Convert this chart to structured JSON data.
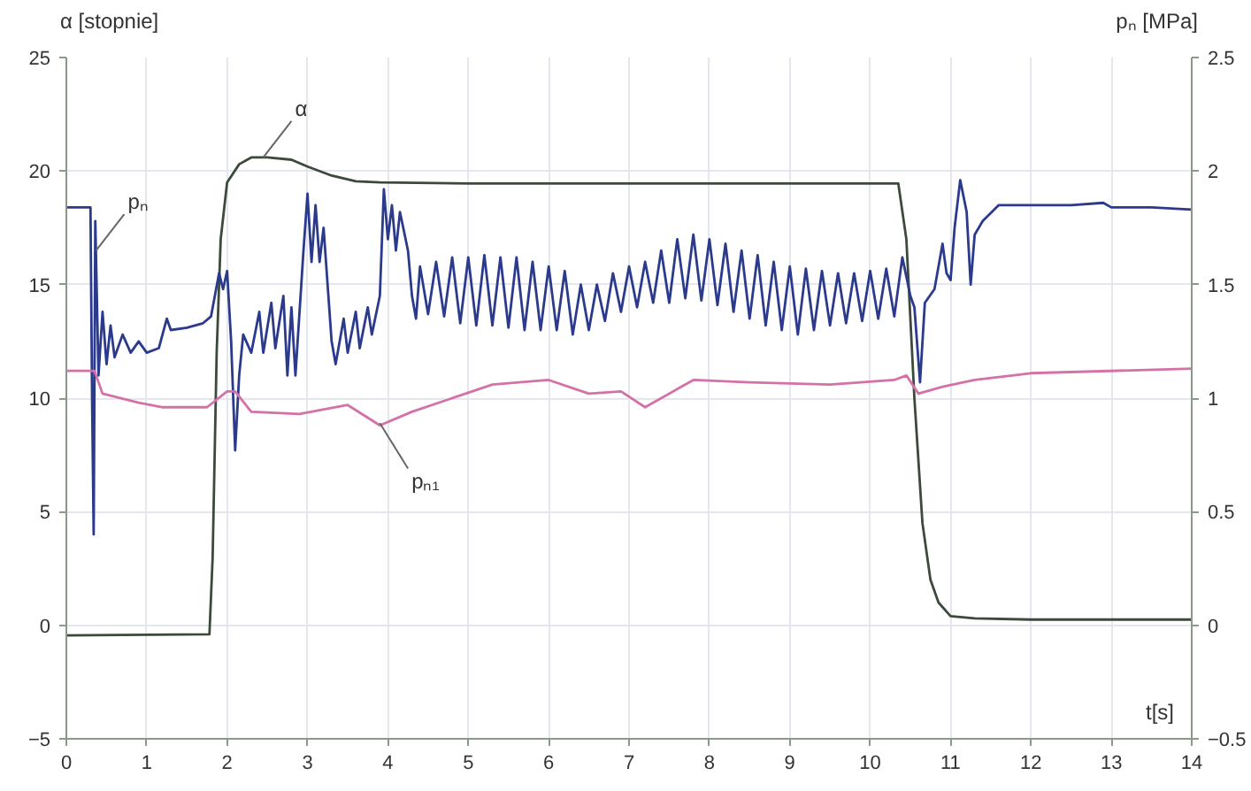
{
  "chart_data": {
    "type": "line",
    "ylabel": "α [stopnie]",
    "y2label": "pₙ [MPa]",
    "xlabel": "t[s]",
    "xlim": [
      0,
      14
    ],
    "xticks": [
      0,
      1,
      2,
      3,
      4,
      5,
      6,
      7,
      8,
      9,
      10,
      11,
      12,
      13,
      14
    ],
    "ylim": [
      -5,
      25
    ],
    "yticks": [
      -5,
      0,
      5,
      10,
      15,
      20,
      25
    ],
    "y2lim": [
      -0.5,
      2.5
    ],
    "y2ticks": [
      -0.5,
      0,
      0.5,
      1,
      1.5,
      2,
      2.5
    ],
    "grid": true,
    "line_style": "solid",
    "marker": "none",
    "annotations": [
      {
        "text": "α",
        "x": 2.45,
        "y": 20.6
      },
      {
        "text": "pₙ",
        "x": 0.37,
        "y": 16.5
      },
      {
        "text": "pₙ₁",
        "x": 3.9,
        "y": 8.9
      }
    ],
    "series": [
      {
        "color": "#3c4a3c",
        "x": [
          0,
          1.78,
          1.82,
          1.87,
          1.92,
          2.0,
          2.15,
          2.3,
          2.5,
          2.8,
          3.0,
          3.3,
          3.6,
          3.9,
          5,
          10.35,
          10.45,
          10.55,
          10.65,
          10.75,
          10.85,
          11.0,
          11.3,
          12,
          14
        ],
        "values": [
          -0.45,
          -0.4,
          3,
          12,
          17,
          19.5,
          20.3,
          20.6,
          20.6,
          20.5,
          20.2,
          19.8,
          19.55,
          19.5,
          19.45,
          19.45,
          17,
          10,
          4.5,
          2,
          1,
          0.4,
          0.3,
          0.25,
          0.25
        ]
      },
      {
        "color": "#2b3a8c",
        "axis": "y2",
        "x": [
          0,
          0.3,
          0.32,
          0.34,
          0.36,
          0.4,
          0.45,
          0.5,
          0.55,
          0.6,
          0.7,
          0.8,
          0.9,
          1.0,
          1.15,
          1.25,
          1.3,
          1.5,
          1.7,
          1.8,
          1.9,
          1.95,
          2.0,
          2.05,
          2.1,
          2.15,
          2.2,
          2.3,
          2.4,
          2.45,
          2.55,
          2.6,
          2.7,
          2.75,
          2.8,
          2.85,
          2.95,
          3.0,
          3.05,
          3.1,
          3.15,
          3.2,
          3.3,
          3.35,
          3.45,
          3.5,
          3.6,
          3.65,
          3.75,
          3.8,
          3.9,
          3.95,
          4.0,
          4.05,
          4.1,
          4.15,
          4.25,
          4.3,
          4.35,
          4.4,
          4.5,
          4.6,
          4.7,
          4.8,
          4.9,
          5.0,
          5.1,
          5.2,
          5.3,
          5.4,
          5.5,
          5.6,
          5.7,
          5.8,
          5.9,
          6.0,
          6.1,
          6.2,
          6.3,
          6.4,
          6.5,
          6.6,
          6.7,
          6.8,
          6.9,
          7.0,
          7.1,
          7.2,
          7.3,
          7.4,
          7.5,
          7.6,
          7.7,
          7.8,
          7.9,
          8.0,
          8.1,
          8.2,
          8.3,
          8.4,
          8.5,
          8.6,
          8.7,
          8.8,
          8.9,
          9.0,
          9.1,
          9.2,
          9.3,
          9.4,
          9.5,
          9.6,
          9.7,
          9.8,
          9.9,
          10.0,
          10.1,
          10.2,
          10.3,
          10.4,
          10.5,
          10.55,
          10.62,
          10.68,
          10.8,
          10.9,
          10.95,
          11.0,
          11.05,
          11.12,
          11.2,
          11.25,
          11.3,
          11.4,
          11.6,
          12.0,
          12.5,
          12.9,
          13.0,
          13.5,
          14.0
        ],
        "values": [
          1.84,
          1.84,
          1.0,
          0.4,
          1.78,
          1.1,
          1.38,
          1.15,
          1.32,
          1.18,
          1.28,
          1.2,
          1.25,
          1.2,
          1.22,
          1.35,
          1.3,
          1.31,
          1.33,
          1.36,
          1.55,
          1.48,
          1.56,
          1.25,
          0.77,
          1.1,
          1.28,
          1.2,
          1.38,
          1.2,
          1.42,
          1.22,
          1.45,
          1.1,
          1.4,
          1.1,
          1.65,
          1.9,
          1.6,
          1.85,
          1.6,
          1.75,
          1.25,
          1.15,
          1.35,
          1.2,
          1.38,
          1.22,
          1.4,
          1.28,
          1.45,
          1.92,
          1.7,
          1.85,
          1.65,
          1.82,
          1.65,
          1.45,
          1.35,
          1.58,
          1.37,
          1.6,
          1.36,
          1.62,
          1.33,
          1.62,
          1.32,
          1.63,
          1.32,
          1.62,
          1.31,
          1.62,
          1.3,
          1.6,
          1.3,
          1.58,
          1.3,
          1.56,
          1.28,
          1.5,
          1.3,
          1.5,
          1.34,
          1.55,
          1.38,
          1.58,
          1.4,
          1.6,
          1.42,
          1.65,
          1.42,
          1.7,
          1.44,
          1.72,
          1.43,
          1.7,
          1.41,
          1.68,
          1.38,
          1.65,
          1.35,
          1.63,
          1.32,
          1.6,
          1.3,
          1.58,
          1.28,
          1.57,
          1.3,
          1.56,
          1.32,
          1.55,
          1.33,
          1.55,
          1.34,
          1.56,
          1.35,
          1.57,
          1.36,
          1.62,
          1.45,
          1.4,
          1.07,
          1.42,
          1.48,
          1.68,
          1.55,
          1.52,
          1.75,
          1.96,
          1.82,
          1.5,
          1.72,
          1.78,
          1.85,
          1.85,
          1.85,
          1.86,
          1.84,
          1.84,
          1.83
        ]
      },
      {
        "color": "#d472a8",
        "axis": "y2",
        "x": [
          0,
          0.35,
          0.45,
          0.9,
          1.2,
          1.75,
          2.0,
          2.1,
          2.3,
          2.9,
          3.5,
          3.9,
          4.3,
          5.3,
          6.0,
          6.5,
          6.9,
          7.2,
          7.8,
          8.5,
          9.5,
          10.3,
          10.45,
          10.6,
          10.9,
          11.3,
          12,
          14
        ],
        "values": [
          1.12,
          1.12,
          1.02,
          0.98,
          0.96,
          0.96,
          1.03,
          1.03,
          0.94,
          0.93,
          0.97,
          0.88,
          0.94,
          1.06,
          1.08,
          1.02,
          1.03,
          0.96,
          1.08,
          1.07,
          1.06,
          1.08,
          1.1,
          1.02,
          1.05,
          1.08,
          1.11,
          1.13
        ]
      }
    ]
  }
}
